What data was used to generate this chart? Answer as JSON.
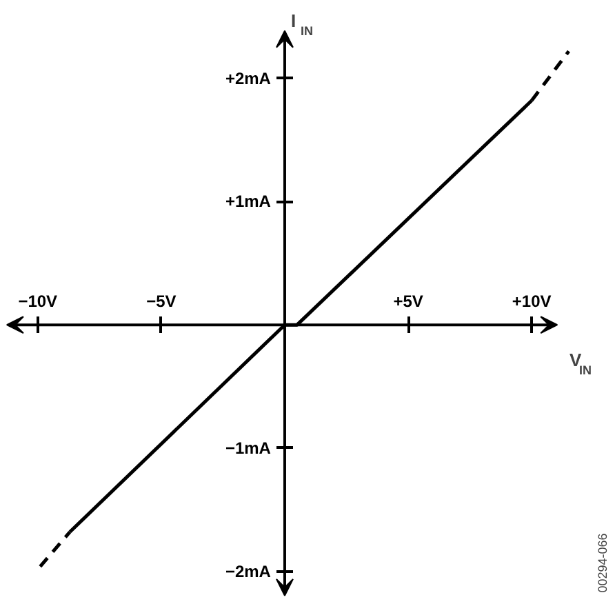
{
  "chart_data": {
    "type": "line",
    "xlabel": "V$_{IN}$",
    "ylabel": "I$_{IN}$",
    "xlim": [
      -11.5,
      13.4
    ],
    "ylim": [
      -2.27,
      2.63
    ],
    "xticks": [
      {
        "value": -10,
        "label": "−10V"
      },
      {
        "value": -5,
        "label": "−5V"
      },
      {
        "value": 5,
        "label": "+5V"
      },
      {
        "value": 10,
        "label": "+10V"
      }
    ],
    "yticks": [
      {
        "value": -2,
        "label": "−2mA"
      },
      {
        "value": -1,
        "label": "−1mA"
      },
      {
        "value": 1,
        "label": "+1mA"
      },
      {
        "value": 2,
        "label": "+2mA"
      }
    ],
    "series": [
      {
        "color": "#000000",
        "line_style": "dashed",
        "x": [
          -9.9,
          -8.7
        ],
        "values": [
          -1.96,
          -1.68
        ]
      },
      {
        "color": "#000000",
        "line_style": "solid",
        "x": [
          -8.7,
          0,
          0.5,
          10
        ],
        "values": [
          -1.68,
          0,
          0,
          1.82
        ]
      },
      {
        "color": "#000000",
        "line_style": "dashed",
        "x": [
          10,
          11.5
        ],
        "values": [
          1.82,
          2.22
        ]
      }
    ],
    "annotations": [
      "00294-066"
    ],
    "grid": false
  }
}
